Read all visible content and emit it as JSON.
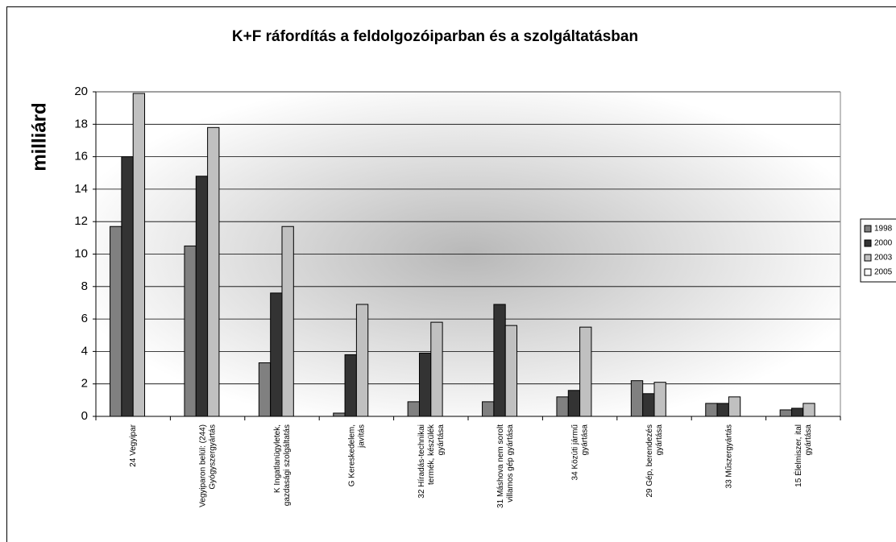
{
  "chart_data": {
    "type": "bar",
    "title": "K+F ráfordítás a feldolgozóiparban és a szolgáltatásban",
    "y_label": "milliárd",
    "categories": [
      "24 Vegyipar",
      "Vegyiparon belül: (244)\nGyógyszergyártás",
      "K Ingatlanügyletek,\ngazdasági szolgáltatás",
      "G Kereskedelem,\njavítás",
      "32 Híradás-technikai\ntermék, készülék\ngyártása",
      "31 Máshova nem sorolt\nvillamos gép gyártása",
      "34 Közúti jármű\ngyártása",
      "29 Gép, berendezés\ngyártása",
      "33 Műszergyártás",
      "15 Élelmiszer, ital\ngyártása"
    ],
    "series": [
      {
        "name": "1998",
        "color": "#808080",
        "values": [
          11.7,
          10.5,
          3.3,
          0.2,
          0.9,
          0.9,
          1.2,
          2.2,
          0.8,
          0.4
        ]
      },
      {
        "name": "2000",
        "color": "#333333",
        "values": [
          16.0,
          14.8,
          7.6,
          3.8,
          3.9,
          6.9,
          1.6,
          1.4,
          0.8,
          0.5
        ]
      },
      {
        "name": "2003",
        "color": "#c0c0c0",
        "values": [
          19.9,
          17.8,
          11.7,
          6.9,
          5.8,
          5.6,
          5.5,
          2.1,
          1.2,
          0.8
        ]
      },
      {
        "name": "2005",
        "color": "#ffffff",
        "values": [
          null,
          null,
          null,
          null,
          null,
          null,
          null,
          null,
          null,
          null
        ]
      }
    ],
    "ylim": [
      0,
      20
    ],
    "yticks": [
      0,
      2,
      4,
      6,
      8,
      10,
      12,
      14,
      16,
      18,
      20
    ],
    "grid": true,
    "legend": "right"
  }
}
